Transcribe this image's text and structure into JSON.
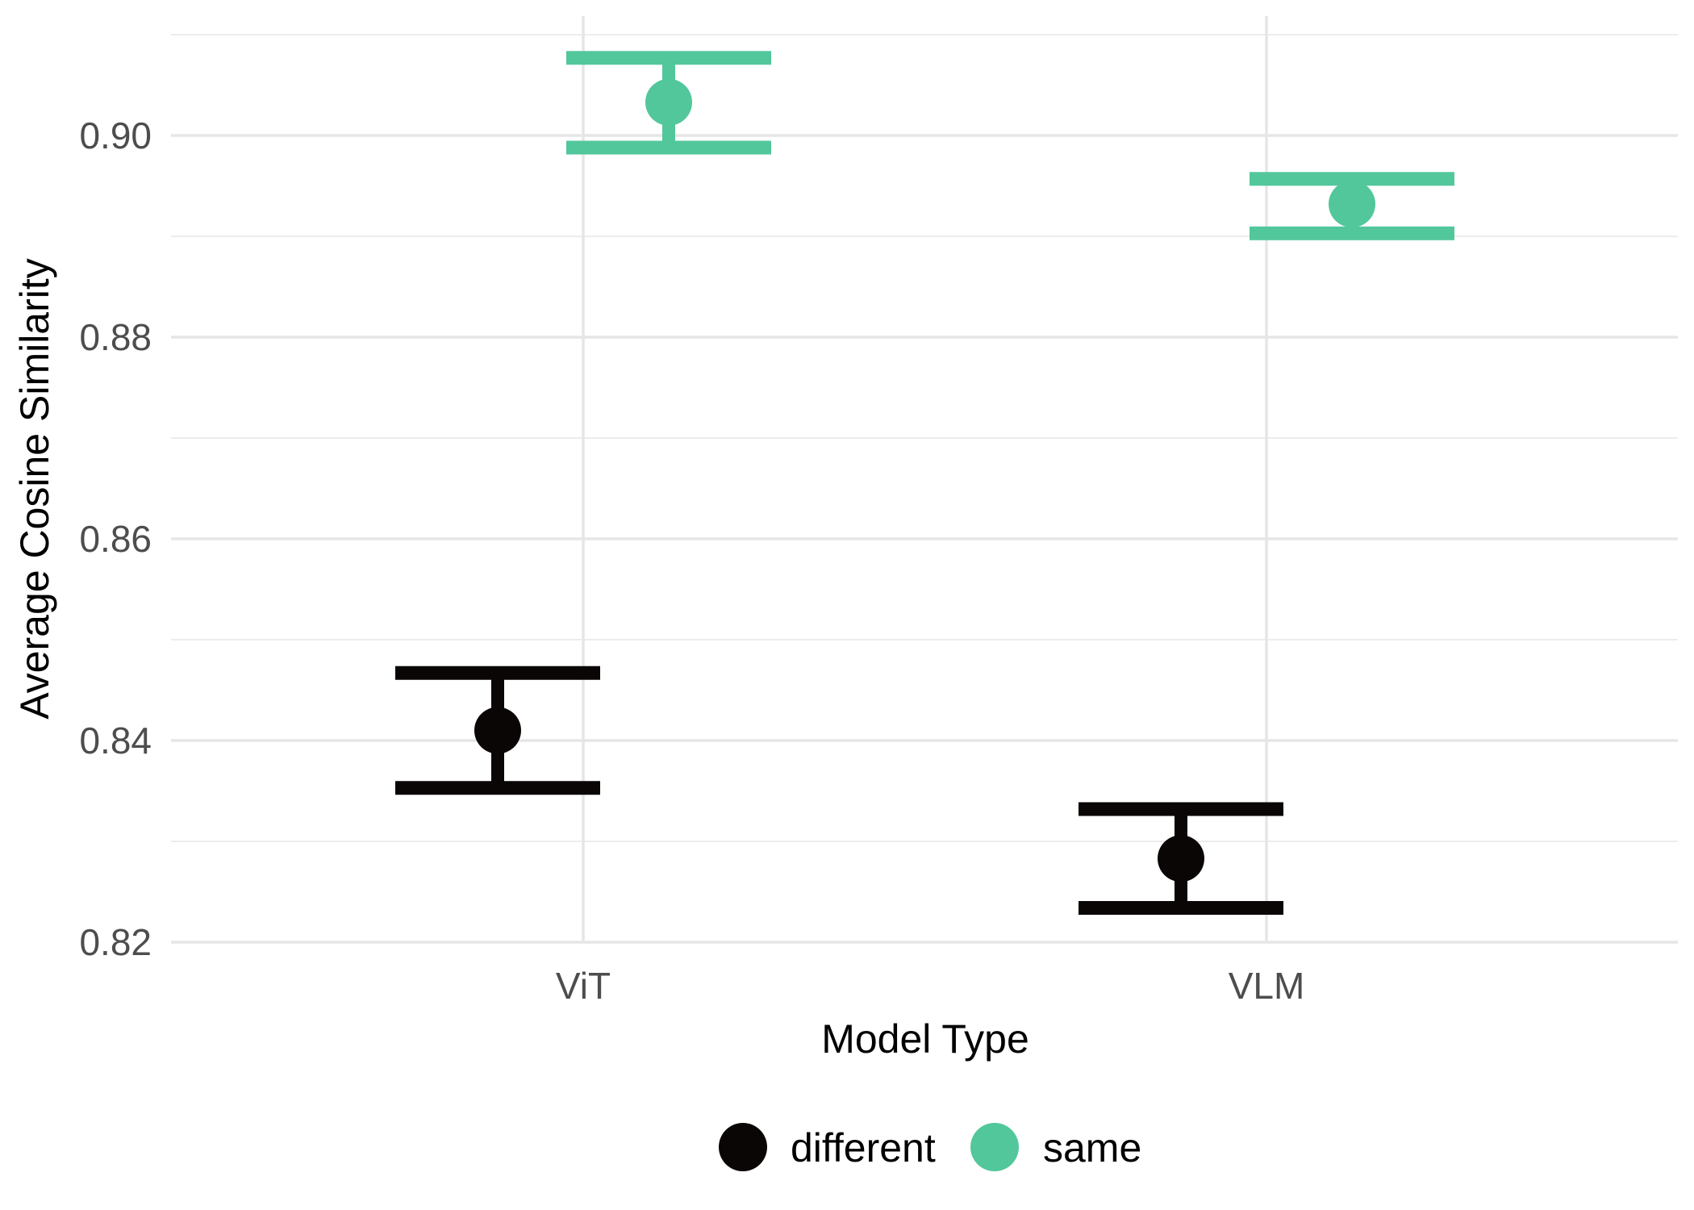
{
  "chart_data": {
    "type": "scatter",
    "title": "",
    "xlabel": "Model Type",
    "ylabel": "Average Cosine Similarity",
    "categories": [
      "ViT",
      "VLM"
    ],
    "ylim": [
      0.82,
      0.91
    ],
    "y_ticks": [
      0.82,
      0.84,
      0.86,
      0.88,
      0.9
    ],
    "y_tick_labels": [
      "0.82",
      "0.84",
      "0.86",
      "0.88",
      "0.90"
    ],
    "grid": true,
    "legend_position": "bottom",
    "error_bars": true,
    "series": [
      {
        "name": "different",
        "color": "#0a0606",
        "values": [
          0.841,
          0.8283
        ],
        "lower": [
          0.8353,
          0.8234
        ],
        "upper": [
          0.8467,
          0.8332
        ]
      },
      {
        "name": "same",
        "color": "#52c79b",
        "values": [
          0.9033,
          0.8932
        ],
        "lower": [
          0.8988,
          0.8903
        ],
        "upper": [
          0.9077,
          0.8957
        ]
      }
    ]
  }
}
